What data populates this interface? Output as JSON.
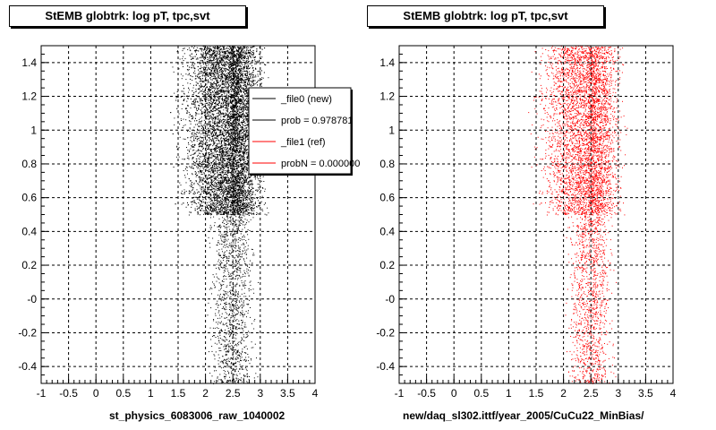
{
  "panels": [
    {
      "title": "StEMB globtrk: log pT, tpc,svt",
      "xlabel": "st_physics_6083006_raw_1040002",
      "color": "#000000",
      "legend": [
        {
          "label": "_file0 (new)",
          "color": "#000000"
        },
        {
          "label": "prob = 0.978781",
          "color": "#000000"
        },
        {
          "label": "_file1 (ref)",
          "color": "#ff0000"
        },
        {
          "label": "probN = 0.000000",
          "color": "#ff0000"
        }
      ]
    },
    {
      "title": "StEMB globtrk: log pT, tpc,svt",
      "xlabel": "new/daq_sl302.ittf/year_2005/CuCu22_MinBias/",
      "color": "#ff0000"
    }
  ],
  "chart_data": {
    "type": "scatter",
    "xlim": [
      -1,
      4
    ],
    "ylim": [
      -0.5,
      1.5
    ],
    "x_ticks": [
      "-1",
      "-0.5",
      "0",
      "0.5",
      "1",
      "1.5",
      "2",
      "2.5",
      "3",
      "3.5",
      "4"
    ],
    "y_ticks": [
      "-0.4",
      "-0.2",
      "-0",
      "0.2",
      "0.4",
      "0.6",
      "0.8",
      "1",
      "1.2",
      "1.4"
    ],
    "grid": true,
    "series": [
      {
        "name": "_file0 (new)",
        "color": "#000000",
        "regions": [
          {
            "x_min": 1.3,
            "x_max": 3.2,
            "y_min": 0.5,
            "y_max": 1.5,
            "density": "high",
            "peak_x": 2.45
          },
          {
            "x_min": 1.95,
            "x_max": 3.0,
            "y_min": -0.5,
            "y_max": 0.5,
            "density": "low",
            "peak_x": 2.5
          }
        ]
      },
      {
        "name": "_file1 (ref)",
        "color": "#ff0000",
        "regions": [
          {
            "x_min": 1.3,
            "x_max": 3.2,
            "y_min": 0.5,
            "y_max": 1.5,
            "density": "medium",
            "peak_x": 2.45
          },
          {
            "x_min": 1.95,
            "x_max": 3.0,
            "y_min": -0.5,
            "y_max": 0.5,
            "density": "low",
            "peak_x": 2.5
          }
        ]
      }
    ]
  }
}
